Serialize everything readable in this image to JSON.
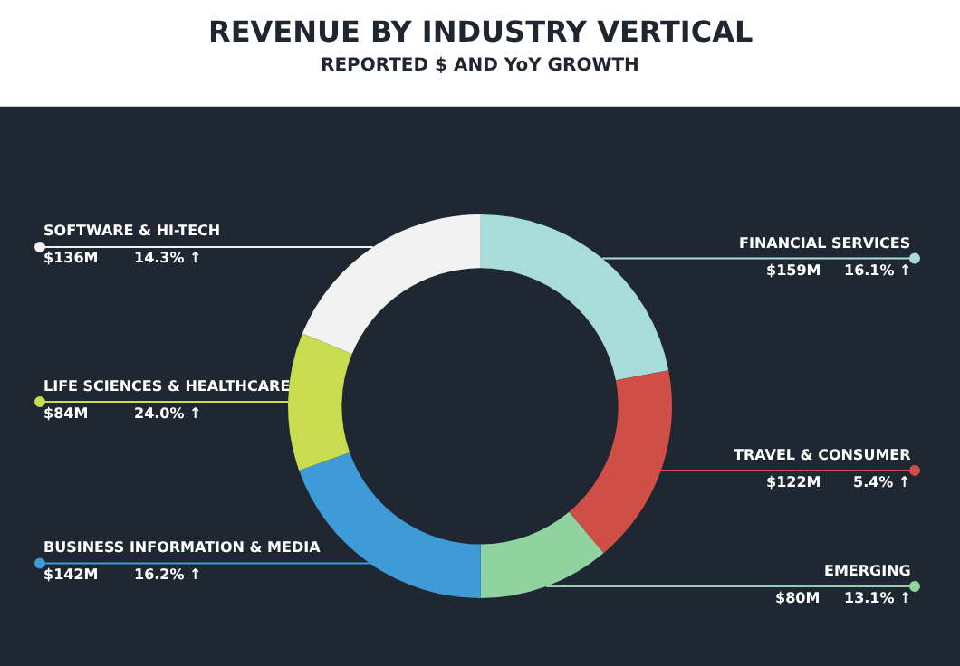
{
  "chart_data": {
    "type": "donut",
    "title": "REVENUE BY INDUSTRY VERTICAL",
    "subtitle": "REPORTED $ AND YoY GROWTH",
    "categories": [
      "FINANCIAL SERVICES",
      "TRAVEL & CONSUMER",
      "EMERGING",
      "BUSINESS INFORMATION & MEDIA",
      "LIFE SCIENCES & HEALTHCARE",
      "SOFTWARE & HI-TECH"
    ],
    "values": [
      159,
      122,
      80,
      142,
      84,
      136
    ],
    "value_labels": [
      "$159M",
      "$122M",
      "$80M",
      "$142M",
      "$84M",
      "$136M"
    ],
    "annotations": [
      "16.1% ↑",
      "5.4% ↑",
      "13.1% ↑",
      "16.2% ↑",
      "24.0% ↑",
      "14.3% ↑"
    ],
    "colors": [
      "#a8dcd9",
      "#cf4f47",
      "#8fd3a0",
      "#3f9bd6",
      "#c8dc4f",
      "#f2f2f2"
    ]
  }
}
